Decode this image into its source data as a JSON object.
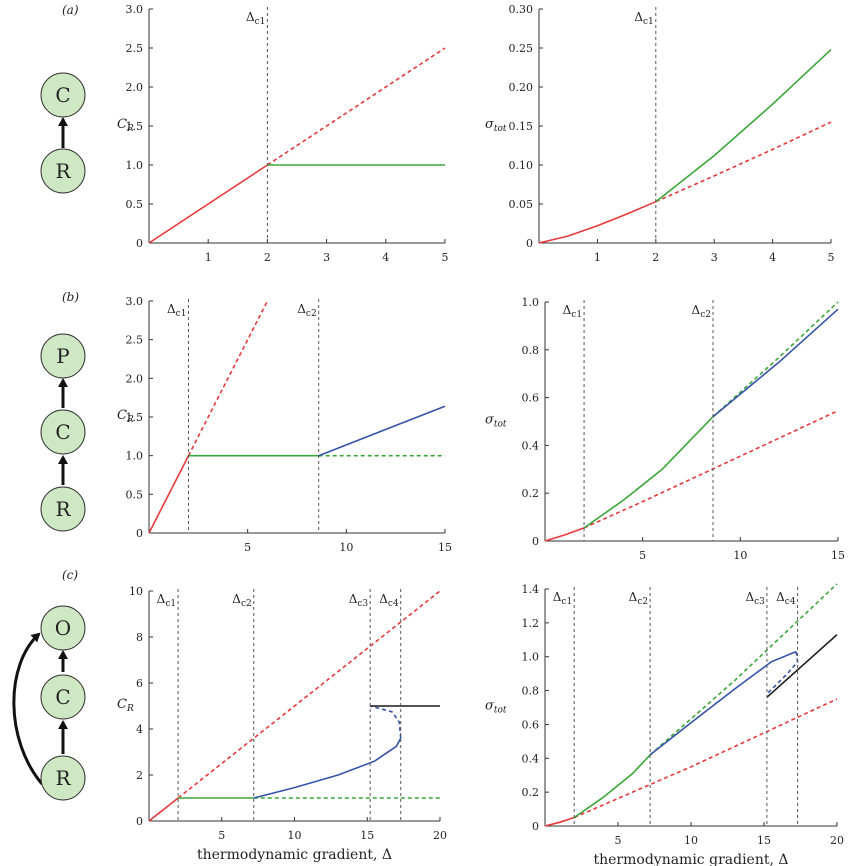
{
  "panel_labels": [
    "(a)",
    "(b)",
    "(c)"
  ],
  "diagrams": [
    {
      "nodes": [
        "C",
        "R"
      ]
    },
    {
      "nodes": [
        "P",
        "C",
        "R"
      ]
    },
    {
      "nodes": [
        "O",
        "C",
        "R"
      ]
    }
  ],
  "colors": {
    "red": "#e8393a",
    "green": "#3aa63a",
    "blue": "#3553a8",
    "black": "#1a1a1a",
    "node_fill": "#cfe8c4"
  },
  "chart_data": [
    {
      "id": "a-left",
      "type": "line",
      "panel": "(a)",
      "ylabel": "CR",
      "ylabel_main": "C",
      "ylabel_sub": "R",
      "xlim": [
        0,
        5
      ],
      "ylim": [
        0,
        3.0
      ],
      "xticks": [
        1,
        2,
        3,
        4,
        5
      ],
      "xtick_labels": [
        "1",
        "2",
        "3",
        "4",
        "5"
      ],
      "yticks": [
        0,
        0.5,
        1.0,
        1.5,
        2.0,
        2.5,
        3.0
      ],
      "ytick_labels": [
        "0",
        "0.5",
        "1.0",
        "1.5",
        "2.0",
        "2.5",
        "3.0"
      ],
      "vlines": [
        {
          "x": 2,
          "label": "Δc1",
          "main": "Δ",
          "sub": "c1"
        }
      ],
      "series": [
        {
          "color": "red",
          "style": "solid",
          "points": [
            [
              0,
              0
            ],
            [
              2,
              1
            ]
          ]
        },
        {
          "color": "red",
          "style": "dashed",
          "points": [
            [
              2,
              1
            ],
            [
              5,
              2.5
            ]
          ]
        },
        {
          "color": "green",
          "style": "solid",
          "points": [
            [
              2,
              1
            ],
            [
              5,
              1
            ]
          ]
        }
      ]
    },
    {
      "id": "a-right",
      "type": "line",
      "panel": "(a)",
      "ylabel": "σtot",
      "ylabel_main": "σ",
      "ylabel_sub": "tot",
      "xlim": [
        0,
        5
      ],
      "ylim": [
        0,
        0.3
      ],
      "xticks": [
        1,
        2,
        3,
        4,
        5
      ],
      "xtick_labels": [
        "1",
        "2",
        "3",
        "4",
        "5"
      ],
      "yticks": [
        0,
        0.05,
        0.1,
        0.15,
        0.2,
        0.25,
        0.3
      ],
      "ytick_labels": [
        "0",
        "0.05",
        "0.10",
        "0.15",
        "0.20",
        "0.25",
        "0.30"
      ],
      "vlines": [
        {
          "x": 2,
          "label": "Δc1",
          "main": "Δ",
          "sub": "c1"
        }
      ],
      "series": [
        {
          "color": "red",
          "style": "solid",
          "points": [
            [
              0,
              0
            ],
            [
              0.5,
              0.009
            ],
            [
              1,
              0.022
            ],
            [
              1.5,
              0.037
            ],
            [
              2,
              0.053
            ]
          ]
        },
        {
          "color": "red",
          "style": "dashed",
          "points": [
            [
              2,
              0.053
            ],
            [
              3,
              0.086
            ],
            [
              4,
              0.12
            ],
            [
              5,
              0.155
            ]
          ]
        },
        {
          "color": "green",
          "style": "solid",
          "points": [
            [
              2,
              0.053
            ],
            [
              3,
              0.112
            ],
            [
              4,
              0.178
            ],
            [
              5,
              0.248
            ]
          ]
        }
      ]
    },
    {
      "id": "b-left",
      "type": "line",
      "panel": "(b)",
      "ylabel": "CR",
      "ylabel_main": "C",
      "ylabel_sub": "R",
      "xlim": [
        0,
        15
      ],
      "ylim": [
        0,
        3.0
      ],
      "xticks": [
        5,
        10,
        15
      ],
      "xtick_labels": [
        "5",
        "10",
        "15"
      ],
      "yticks": [
        0,
        0.5,
        1.0,
        1.5,
        2.0,
        2.5,
        3.0
      ],
      "ytick_labels": [
        "0",
        "0.5",
        "1.0",
        "1.5",
        "2.0",
        "2.5",
        "3.0"
      ],
      "vlines": [
        {
          "x": 2,
          "label": "Δc1",
          "main": "Δ",
          "sub": "c1"
        },
        {
          "x": 8.6,
          "label": "Δc2",
          "main": "Δ",
          "sub": "c2"
        }
      ],
      "series": [
        {
          "color": "red",
          "style": "solid",
          "points": [
            [
              0,
              0
            ],
            [
              2,
              1
            ]
          ]
        },
        {
          "color": "red",
          "style": "dashed",
          "points": [
            [
              2,
              1
            ],
            [
              6,
              3
            ]
          ]
        },
        {
          "color": "green",
          "style": "solid",
          "points": [
            [
              2,
              1
            ],
            [
              8.6,
              1
            ]
          ]
        },
        {
          "color": "green",
          "style": "dashed",
          "points": [
            [
              8.6,
              1
            ],
            [
              15,
              1
            ]
          ]
        },
        {
          "color": "blue",
          "style": "solid",
          "points": [
            [
              8.6,
              1
            ],
            [
              15,
              1.64
            ]
          ]
        }
      ]
    },
    {
      "id": "b-right",
      "type": "line",
      "panel": "(b)",
      "ylabel": "σtot",
      "ylabel_main": "σ",
      "ylabel_sub": "tot",
      "xlim": [
        0,
        15
      ],
      "ylim": [
        0,
        1.0
      ],
      "xticks": [
        5,
        10,
        15
      ],
      "xtick_labels": [
        "5",
        "10",
        "15"
      ],
      "yticks": [
        0,
        0.2,
        0.4,
        0.6,
        0.8,
        1.0
      ],
      "ytick_labels": [
        "0",
        "0.2",
        "0.4",
        "0.6",
        "0.8",
        "1.0"
      ],
      "vlines": [
        {
          "x": 2,
          "label": "Δc1",
          "main": "Δ",
          "sub": "c1"
        },
        {
          "x": 8.6,
          "label": "Δc2",
          "main": "Δ",
          "sub": "c2"
        }
      ],
      "series": [
        {
          "color": "red",
          "style": "solid",
          "points": [
            [
              0,
              0
            ],
            [
              1,
              0.025
            ],
            [
              2,
              0.055
            ]
          ]
        },
        {
          "color": "red",
          "style": "dashed",
          "points": [
            [
              2,
              0.055
            ],
            [
              5,
              0.165
            ],
            [
              10,
              0.355
            ],
            [
              15,
              0.545
            ]
          ]
        },
        {
          "color": "green",
          "style": "solid",
          "points": [
            [
              2,
              0.055
            ],
            [
              4,
              0.17
            ],
            [
              6,
              0.3
            ],
            [
              8.6,
              0.52
            ]
          ]
        },
        {
          "color": "green",
          "style": "dashed",
          "points": [
            [
              8.6,
              0.52
            ],
            [
              12,
              0.77
            ],
            [
              15,
              1.0
            ]
          ]
        },
        {
          "color": "blue",
          "style": "solid",
          "points": [
            [
              8.6,
              0.52
            ],
            [
              12,
              0.75
            ],
            [
              15,
              0.97
            ]
          ]
        }
      ]
    },
    {
      "id": "c-left",
      "type": "line",
      "panel": "(c)",
      "ylabel": "CR",
      "ylabel_main": "C",
      "ylabel_sub": "R",
      "xlabel": "thermodynamic gradient, Δ",
      "xlim": [
        0,
        20
      ],
      "ylim": [
        0,
        10
      ],
      "xticks": [
        5,
        10,
        15,
        20
      ],
      "xtick_labels": [
        "5",
        "10",
        "15",
        "20"
      ],
      "yticks": [
        0,
        2,
        4,
        6,
        8,
        10
      ],
      "ytick_labels": [
        "0",
        "2",
        "4",
        "6",
        "8",
        "10"
      ],
      "vlines": [
        {
          "x": 2,
          "label": "Δc1",
          "main": "Δ",
          "sub": "c1"
        },
        {
          "x": 7.2,
          "label": "Δc2",
          "main": "Δ",
          "sub": "c2"
        },
        {
          "x": 15.2,
          "label": "Δc3",
          "main": "Δ",
          "sub": "c3"
        },
        {
          "x": 17.3,
          "label": "Δc4",
          "main": "Δ",
          "sub": "c4"
        }
      ],
      "series": [
        {
          "color": "red",
          "style": "solid",
          "points": [
            [
              0,
              0
            ],
            [
              2,
              1
            ]
          ]
        },
        {
          "color": "red",
          "style": "dashed",
          "points": [
            [
              2,
              1
            ],
            [
              20,
              10
            ]
          ]
        },
        {
          "color": "green",
          "style": "solid",
          "points": [
            [
              2,
              1
            ],
            [
              7.2,
              1
            ]
          ]
        },
        {
          "color": "green",
          "style": "dashed",
          "points": [
            [
              7.2,
              1
            ],
            [
              20,
              1
            ]
          ]
        },
        {
          "color": "blue",
          "style": "solid",
          "points": [
            [
              7.2,
              1
            ],
            [
              10,
              1.45
            ],
            [
              13,
              2
            ],
            [
              15.5,
              2.6
            ],
            [
              17,
              3.25
            ],
            [
              17.3,
              3.6
            ]
          ]
        },
        {
          "color": "blue",
          "style": "dashed",
          "points": [
            [
              17.3,
              3.6
            ],
            [
              17.2,
              4.3
            ],
            [
              16.7,
              4.75
            ],
            [
              15.2,
              5
            ]
          ]
        },
        {
          "color": "black",
          "style": "solid",
          "points": [
            [
              15.2,
              5
            ],
            [
              20,
              5
            ]
          ]
        }
      ]
    },
    {
      "id": "c-right",
      "type": "line",
      "panel": "(c)",
      "ylabel": "σtot",
      "ylabel_main": "σ",
      "ylabel_sub": "tot",
      "xlabel": "thermodynamic gradient, Δ",
      "xlim": [
        0,
        20
      ],
      "ylim": [
        0,
        1.4
      ],
      "xticks": [
        5,
        10,
        15,
        20
      ],
      "xtick_labels": [
        "5",
        "10",
        "15",
        "20"
      ],
      "yticks": [
        0,
        0.2,
        0.4,
        0.6,
        0.8,
        1.0,
        1.2,
        1.4
      ],
      "ytick_labels": [
        "0",
        "0.2",
        "0.4",
        "0.6",
        "0.8",
        "1.0",
        "1.2",
        "1.4"
      ],
      "vlines": [
        {
          "x": 2,
          "label": "Δc1",
          "main": "Δ",
          "sub": "c1"
        },
        {
          "x": 7.2,
          "label": "Δc2",
          "main": "Δ",
          "sub": "c2"
        },
        {
          "x": 15.2,
          "label": "Δc3",
          "main": "Δ",
          "sub": "c3"
        },
        {
          "x": 17.3,
          "label": "Δc4",
          "main": "Δ",
          "sub": "c4"
        }
      ],
      "series": [
        {
          "color": "red",
          "style": "solid",
          "points": [
            [
              0,
              0
            ],
            [
              1,
              0.022
            ],
            [
              2,
              0.05
            ]
          ]
        },
        {
          "color": "red",
          "style": "dashed",
          "points": [
            [
              2,
              0.05
            ],
            [
              10,
              0.35
            ],
            [
              20,
              0.75
            ]
          ]
        },
        {
          "color": "green",
          "style": "solid",
          "points": [
            [
              2,
              0.05
            ],
            [
              4,
              0.17
            ],
            [
              6,
              0.31
            ],
            [
              7.2,
              0.42
            ]
          ]
        },
        {
          "color": "green",
          "style": "dashed",
          "points": [
            [
              7.2,
              0.42
            ],
            [
              13,
              0.86
            ],
            [
              20,
              1.43
            ]
          ]
        },
        {
          "color": "blue",
          "style": "solid",
          "points": [
            [
              7.2,
              0.42
            ],
            [
              10,
              0.61
            ],
            [
              13,
              0.81
            ],
            [
              15.5,
              0.97
            ],
            [
              17.2,
              1.03
            ]
          ]
        },
        {
          "color": "blue",
          "style": "dashed",
          "points": [
            [
              17.2,
              1.03
            ],
            [
              17.3,
              0.97
            ],
            [
              16.6,
              0.9
            ],
            [
              15.2,
              0.78
            ]
          ]
        },
        {
          "color": "black",
          "style": "solid",
          "points": [
            [
              15.2,
              0.76
            ],
            [
              20,
              1.13
            ]
          ]
        }
      ]
    }
  ]
}
